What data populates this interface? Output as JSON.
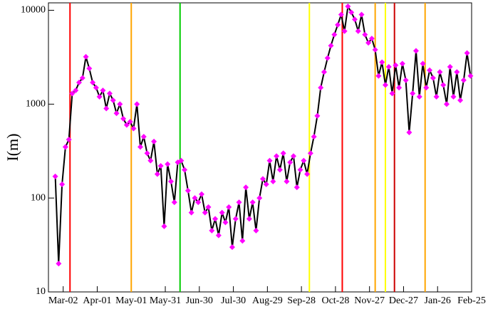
{
  "chart_data": {
    "type": "line",
    "y_label": "I(m)",
    "y_scale": "log",
    "xlim": [
      -13,
      360
    ],
    "ylim": [
      10,
      12000
    ],
    "yticks": [
      10,
      100,
      1000,
      10000
    ],
    "xticks": [
      {
        "value": 0,
        "label": "Mar-02"
      },
      {
        "value": 30,
        "label": "Apr-01"
      },
      {
        "value": 60,
        "label": "May-01"
      },
      {
        "value": 90,
        "label": "May-31"
      },
      {
        "value": 120,
        "label": "Jun-30"
      },
      {
        "value": 150,
        "label": "Jul-30"
      },
      {
        "value": 180,
        "label": "Aug-29"
      },
      {
        "value": 210,
        "label": "Sep-28"
      },
      {
        "value": 240,
        "label": "Oct-28"
      },
      {
        "value": 270,
        "label": "Nov-27"
      },
      {
        "value": 300,
        "label": "Dec-27"
      },
      {
        "value": 330,
        "label": "Jan-26"
      },
      {
        "value": 360,
        "label": "Feb-25"
      }
    ],
    "vlines": [
      {
        "x": 6,
        "color": "#ff0000"
      },
      {
        "x": 60,
        "color": "#ffa500"
      },
      {
        "x": 103,
        "color": "#00cc00"
      },
      {
        "x": 217,
        "color": "#ffff00"
      },
      {
        "x": 246,
        "color": "#ff0000"
      },
      {
        "x": 275,
        "color": "#ffa500"
      },
      {
        "x": 284,
        "color": "#ffff00"
      },
      {
        "x": 292,
        "color": "#cc0000"
      },
      {
        "x": 319,
        "color": "#ffa500"
      }
    ],
    "series": [
      {
        "color": "#000000",
        "marker_color": "#ff00ff",
        "x": [
          -7,
          -4,
          -1,
          2,
          5,
          8,
          11,
          14,
          17,
          20,
          23,
          26,
          29,
          32,
          35,
          38,
          41,
          44,
          47,
          50,
          53,
          56,
          59,
          62,
          65,
          68,
          71,
          74,
          77,
          80,
          83,
          86,
          89,
          92,
          95,
          98,
          101,
          104,
          107,
          110,
          113,
          116,
          119,
          122,
          125,
          128,
          131,
          134,
          137,
          140,
          143,
          146,
          149,
          152,
          155,
          158,
          161,
          164,
          167,
          170,
          173,
          176,
          179,
          182,
          185,
          188,
          191,
          194,
          197,
          200,
          203,
          206,
          209,
          212,
          215,
          218,
          221,
          224,
          227,
          230,
          233,
          236,
          239,
          242,
          245,
          248,
          251,
          254,
          257,
          260,
          263,
          266,
          269,
          272,
          275,
          278,
          281,
          284,
          287,
          290,
          293,
          296,
          299,
          302,
          305,
          308,
          311,
          314,
          317,
          320,
          323,
          326,
          329,
          332,
          335,
          338,
          341,
          344,
          347,
          350,
          353,
          356,
          359
        ],
        "values": [
          170,
          20,
          140,
          350,
          420,
          1300,
          1400,
          1700,
          1900,
          3200,
          2400,
          1700,
          1500,
          1200,
          1400,
          900,
          1300,
          1100,
          800,
          1000,
          700,
          600,
          650,
          550,
          1000,
          350,
          450,
          300,
          250,
          400,
          180,
          220,
          50,
          230,
          150,
          90,
          240,
          250,
          200,
          120,
          70,
          100,
          90,
          110,
          70,
          80,
          45,
          60,
          40,
          70,
          55,
          80,
          30,
          60,
          90,
          35,
          130,
          60,
          90,
          45,
          100,
          160,
          140,
          250,
          150,
          280,
          200,
          300,
          150,
          240,
          280,
          130,
          200,
          250,
          180,
          300,
          450,
          750,
          1500,
          2200,
          3100,
          4200,
          5500,
          7000,
          9000,
          6000,
          11000,
          9500,
          8000,
          6000,
          9000,
          5500,
          4500,
          5000,
          3800,
          2000,
          2800,
          1600,
          2500,
          1300,
          2600,
          1500,
          2700,
          1800,
          500,
          1300,
          3700,
          1200,
          2700,
          1500,
          2300,
          1900,
          1200,
          2200,
          1600,
          1000,
          2500,
          1200,
          2200,
          1100,
          1800,
          3500,
          2000
        ]
      }
    ]
  }
}
